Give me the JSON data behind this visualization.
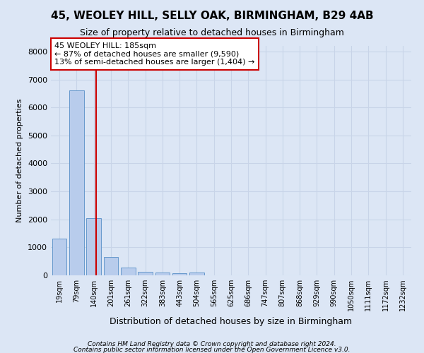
{
  "title1": "45, WEOLEY HILL, SELLY OAK, BIRMINGHAM, B29 4AB",
  "title2": "Size of property relative to detached houses in Birmingham",
  "xlabel": "Distribution of detached houses by size in Birmingham",
  "ylabel": "Number of detached properties",
  "footer1": "Contains HM Land Registry data © Crown copyright and database right 2024.",
  "footer2": "Contains public sector information licensed under the Open Government Licence v3.0.",
  "bin_labels": [
    "19sqm",
    "79sqm",
    "140sqm",
    "201sqm",
    "261sqm",
    "322sqm",
    "383sqm",
    "443sqm",
    "504sqm",
    "565sqm",
    "625sqm",
    "686sqm",
    "747sqm",
    "807sqm",
    "868sqm",
    "929sqm",
    "990sqm",
    "1050sqm",
    "1111sqm",
    "1172sqm",
    "1232sqm"
  ],
  "bar_values": [
    1300,
    6600,
    2050,
    650,
    280,
    130,
    90,
    70,
    110,
    0,
    0,
    0,
    0,
    0,
    0,
    0,
    0,
    0,
    0,
    0,
    0
  ],
  "bar_color": "#b8ccec",
  "bar_edge_color": "#6699cc",
  "grid_color": "#c8d4e8",
  "annotation_text": "45 WEOLEY HILL: 185sqm\n← 87% of detached houses are smaller (9,590)\n13% of semi-detached houses are larger (1,404) →",
  "annotation_box_color": "#ffffff",
  "annotation_box_edge": "#cc0000",
  "vline_x": 2.15,
  "vline_color": "#cc0000",
  "ylim": [
    0,
    8200
  ],
  "background_color": "#dce6f5"
}
